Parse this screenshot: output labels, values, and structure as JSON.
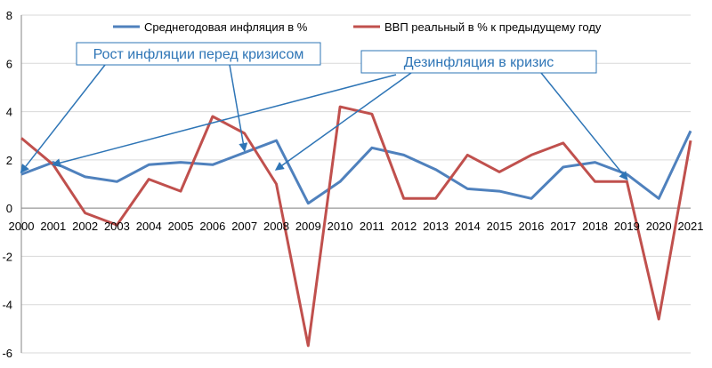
{
  "chart_data": {
    "type": "line",
    "x": [
      "2000",
      "2001",
      "2002",
      "2003",
      "2004",
      "2005",
      "2006",
      "2007",
      "2008",
      "2009",
      "2010",
      "2011",
      "2012",
      "2013",
      "2014",
      "2015",
      "2016",
      "2017",
      "2018",
      "2019",
      "2020",
      "2021"
    ],
    "ylim": [
      -6,
      8
    ],
    "yticks": [
      "-6",
      "-4",
      "-2",
      "0",
      "2",
      "4",
      "6",
      "8"
    ],
    "grid": true,
    "legend_position": "top",
    "series": [
      {
        "name": "Среднегодовая инфляция в %",
        "color": "#4f81bd",
        "values": [
          1.4,
          1.9,
          1.3,
          1.1,
          1.8,
          1.9,
          1.8,
          2.3,
          2.8,
          0.2,
          1.1,
          2.5,
          2.2,
          1.6,
          0.8,
          0.7,
          0.4,
          1.7,
          1.9,
          1.4,
          0.4,
          3.2
        ]
      },
      {
        "name": "ВВП реальный в % к предыдущему году",
        "color": "#c0504d",
        "values": [
          2.9,
          1.8,
          -0.2,
          -0.7,
          1.2,
          0.7,
          3.8,
          3.1,
          1.0,
          -5.7,
          4.2,
          3.9,
          0.4,
          0.4,
          2.2,
          1.5,
          2.2,
          2.7,
          1.1,
          1.1,
          -4.6,
          2.8
        ]
      }
    ],
    "annotations": [
      {
        "text": "Рост инфляции перед кризисом",
        "targets": [
          {
            "x": "2000",
            "y": 1.5
          },
          {
            "x": "2001",
            "y": 1.8
          },
          {
            "x": "2007",
            "y": 2.4
          }
        ]
      },
      {
        "text": "Дезинфляция в кризис",
        "targets": [
          {
            "x": "2008",
            "y": 1.6
          },
          {
            "x": "2019",
            "y": 1.2
          }
        ]
      }
    ]
  }
}
